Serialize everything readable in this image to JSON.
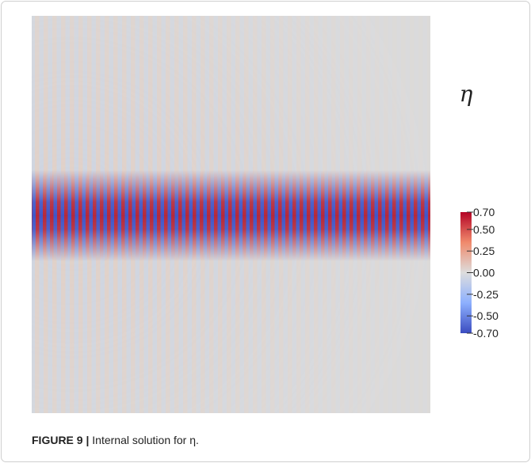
{
  "figure": {
    "colorbar": {
      "title": "η",
      "lim": [
        -0.7,
        0.7
      ],
      "ticks": [
        {
          "value": 0.7,
          "label": "0.70"
        },
        {
          "value": 0.5,
          "label": "0.50"
        },
        {
          "value": 0.25,
          "label": "0.25"
        },
        {
          "value": 0,
          "label": "0.00"
        },
        {
          "value": -0.25,
          "label": "-0.25"
        },
        {
          "value": -0.5,
          "label": "-0.50"
        },
        {
          "value": -0.7,
          "label": "-0.70"
        }
      ]
    }
  },
  "caption": {
    "label": "FIGURE 9 |",
    "text": "Internal solution for η."
  }
}
